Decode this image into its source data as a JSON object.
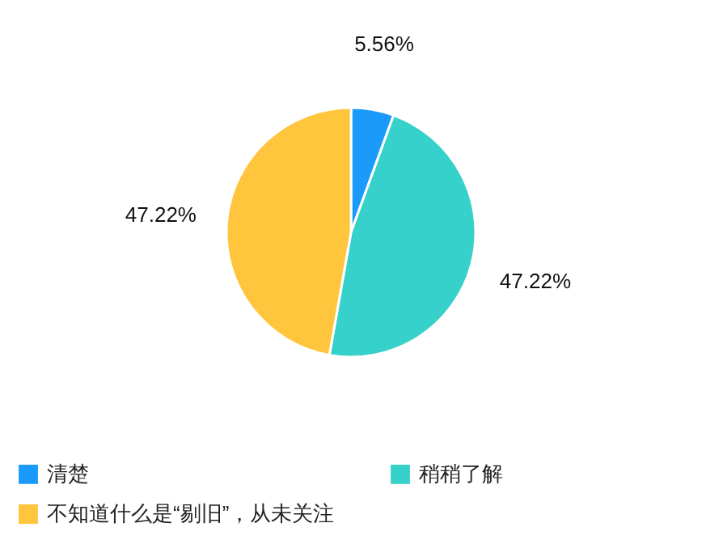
{
  "chart_data": {
    "type": "pie",
    "categories": [
      "清楚",
      "稍稍了解",
      "不知道什么是“剔旧”，从未关注"
    ],
    "values": [
      5.56,
      47.22,
      47.22
    ],
    "value_labels": [
      "5.56%",
      "47.22%",
      "47.22%"
    ],
    "colors": [
      "#1a9bfc",
      "#36d1ca",
      "#ffc53d"
    ],
    "legend": "bottom"
  }
}
